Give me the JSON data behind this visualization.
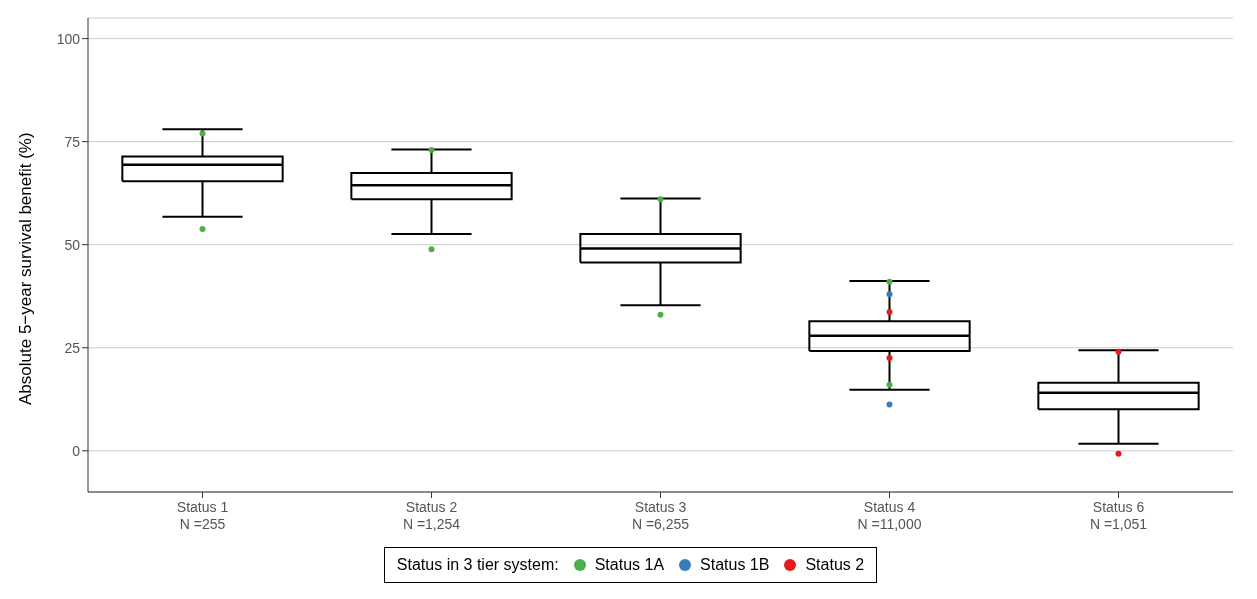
{
  "chart_data": {
    "type": "box",
    "ylabel": "Absolute 5−year survival benefit (%)",
    "legend_title": "Status in 3 tier system:",
    "categories": [
      "Status 1\nN =255",
      "Status 2\nN =1,254",
      "Status 3\nN =6,255",
      "Status 4\nN =11,000",
      "Status 6\nN =1,051"
    ],
    "boxes": [
      {
        "low": 56.8,
        "q1": 65.4,
        "median": 69.4,
        "q3": 71.4,
        "high": 78
      },
      {
        "low": 52.6,
        "q1": 61,
        "median": 64.4,
        "q3": 67.4,
        "high": 73.1
      },
      {
        "low": 35.3,
        "q1": 45.7,
        "median": 49.1,
        "q3": 52.6,
        "high": 61.2
      },
      {
        "low": 14.8,
        "q1": 24.2,
        "median": 27.9,
        "q3": 31.4,
        "high": 41.2
      },
      {
        "low": 1.7,
        "q1": 10.1,
        "median": 14.1,
        "q3": 16.5,
        "high": 24.4
      }
    ],
    "series": [
      {
        "name": "Status 1A",
        "type": "scatter",
        "color": "#4daf4a",
        "x": [
          "Status 1\nN =255",
          "Status 1\nN =255",
          "Status 2\nN =1,254",
          "Status 2\nN =1,254",
          "Status 3\nN =6,255",
          "Status 3\nN =6,255",
          "Status 4\nN =11,000",
          "Status 4\nN =11,000"
        ],
        "values": [
          53.8,
          77,
          48.9,
          73,
          33,
          61,
          16,
          41
        ]
      },
      {
        "name": "Status 1B",
        "type": "scatter",
        "color": "#377eb8",
        "x": [
          "Status 4\nN =11,000",
          "Status 4\nN =11,000"
        ],
        "values": [
          11.2,
          38
        ]
      },
      {
        "name": "Status 2",
        "type": "scatter",
        "color": "#e41a1c",
        "x": [
          "Status 4\nN =11,000",
          "Status 4\nN =11,000",
          "Status 6\nN =1,051",
          "Status 6\nN =1,051"
        ],
        "values": [
          22.5,
          33.7,
          -0.7,
          24
        ]
      }
    ],
    "ylim": [
      -10,
      105
    ],
    "yticks": [
      0,
      25,
      50,
      75,
      100
    ],
    "grid": "y",
    "legend": "bottom",
    "marker": "circle"
  }
}
